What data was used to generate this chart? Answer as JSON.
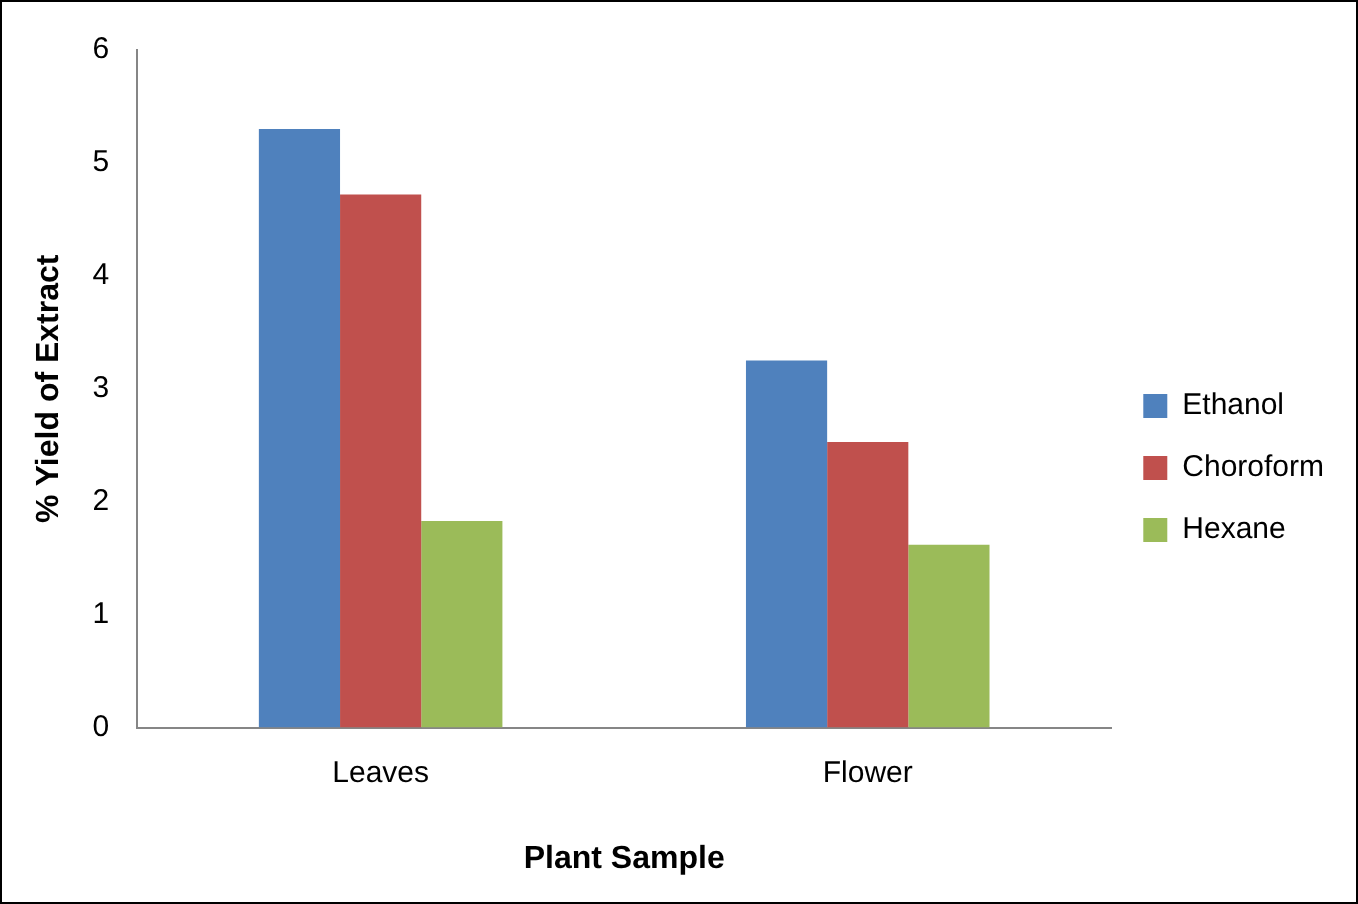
{
  "chart_data": {
    "type": "bar",
    "xlabel": "Plant Sample",
    "ylabel": "% Yield of Extract",
    "categories": [
      "Leaves",
      "Flower"
    ],
    "series": [
      {
        "name": "Ethanol",
        "color": "#4f81bd",
        "values": [
          5.3,
          3.25
        ]
      },
      {
        "name": "Choroform",
        "color": "#c0504d",
        "values": [
          4.72,
          2.53
        ]
      },
      {
        "name": "Hexane",
        "color": "#9bbb59",
        "values": [
          1.83,
          1.62
        ]
      }
    ],
    "ylim": [
      0,
      6
    ],
    "yticks": [
      0,
      1,
      2,
      3,
      4,
      5,
      6
    ],
    "grid": false,
    "legend": "right"
  }
}
